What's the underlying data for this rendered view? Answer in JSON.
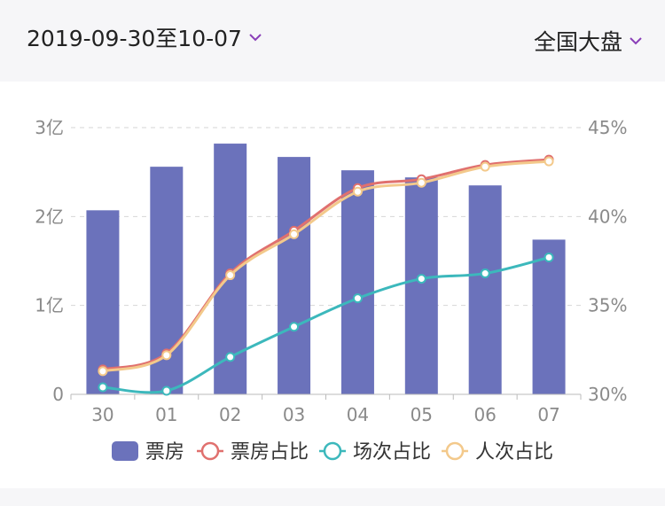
{
  "header": {
    "date_range": "2019-09-30至10-07",
    "region": "全国大盘"
  },
  "colors": {
    "bar": "#6b72bb",
    "box_office_share": "#e0706e",
    "shows_share": "#3cb8bc",
    "admissions_share": "#f3c98b",
    "chevron": "#8a3fb8",
    "grid": "#d6d6d6",
    "axis_text": "#8a8a8a"
  },
  "chart_data": {
    "type": "bar",
    "categories": [
      "30",
      "01",
      "02",
      "03",
      "04",
      "05",
      "06",
      "07"
    ],
    "y_left": {
      "ticks": [
        "0",
        "1亿",
        "2亿",
        "3亿"
      ],
      "range": [
        0,
        3
      ],
      "unit": "亿"
    },
    "y_right": {
      "ticks": [
        "30%",
        "35%",
        "40%",
        "45%"
      ],
      "range": [
        30,
        45
      ]
    },
    "bars": {
      "name": "票房",
      "values": [
        2.07,
        2.56,
        2.82,
        2.67,
        2.52,
        2.44,
        2.35,
        1.74
      ]
    },
    "lines": [
      {
        "name": "票房占比",
        "values": [
          31.4,
          32.3,
          36.8,
          39.2,
          41.6,
          42.1,
          42.9,
          43.2
        ]
      },
      {
        "name": "场次占比",
        "values": [
          30.4,
          30.2,
          32.1,
          33.8,
          35.4,
          36.5,
          36.8,
          37.7
        ]
      },
      {
        "name": "人次占比",
        "values": [
          31.3,
          32.2,
          36.7,
          39.0,
          41.4,
          41.9,
          42.8,
          43.1
        ]
      }
    ],
    "legend": [
      "票房",
      "票房占比",
      "场次占比",
      "人次占比"
    ],
    "grid": true,
    "legend_position": "bottom"
  }
}
